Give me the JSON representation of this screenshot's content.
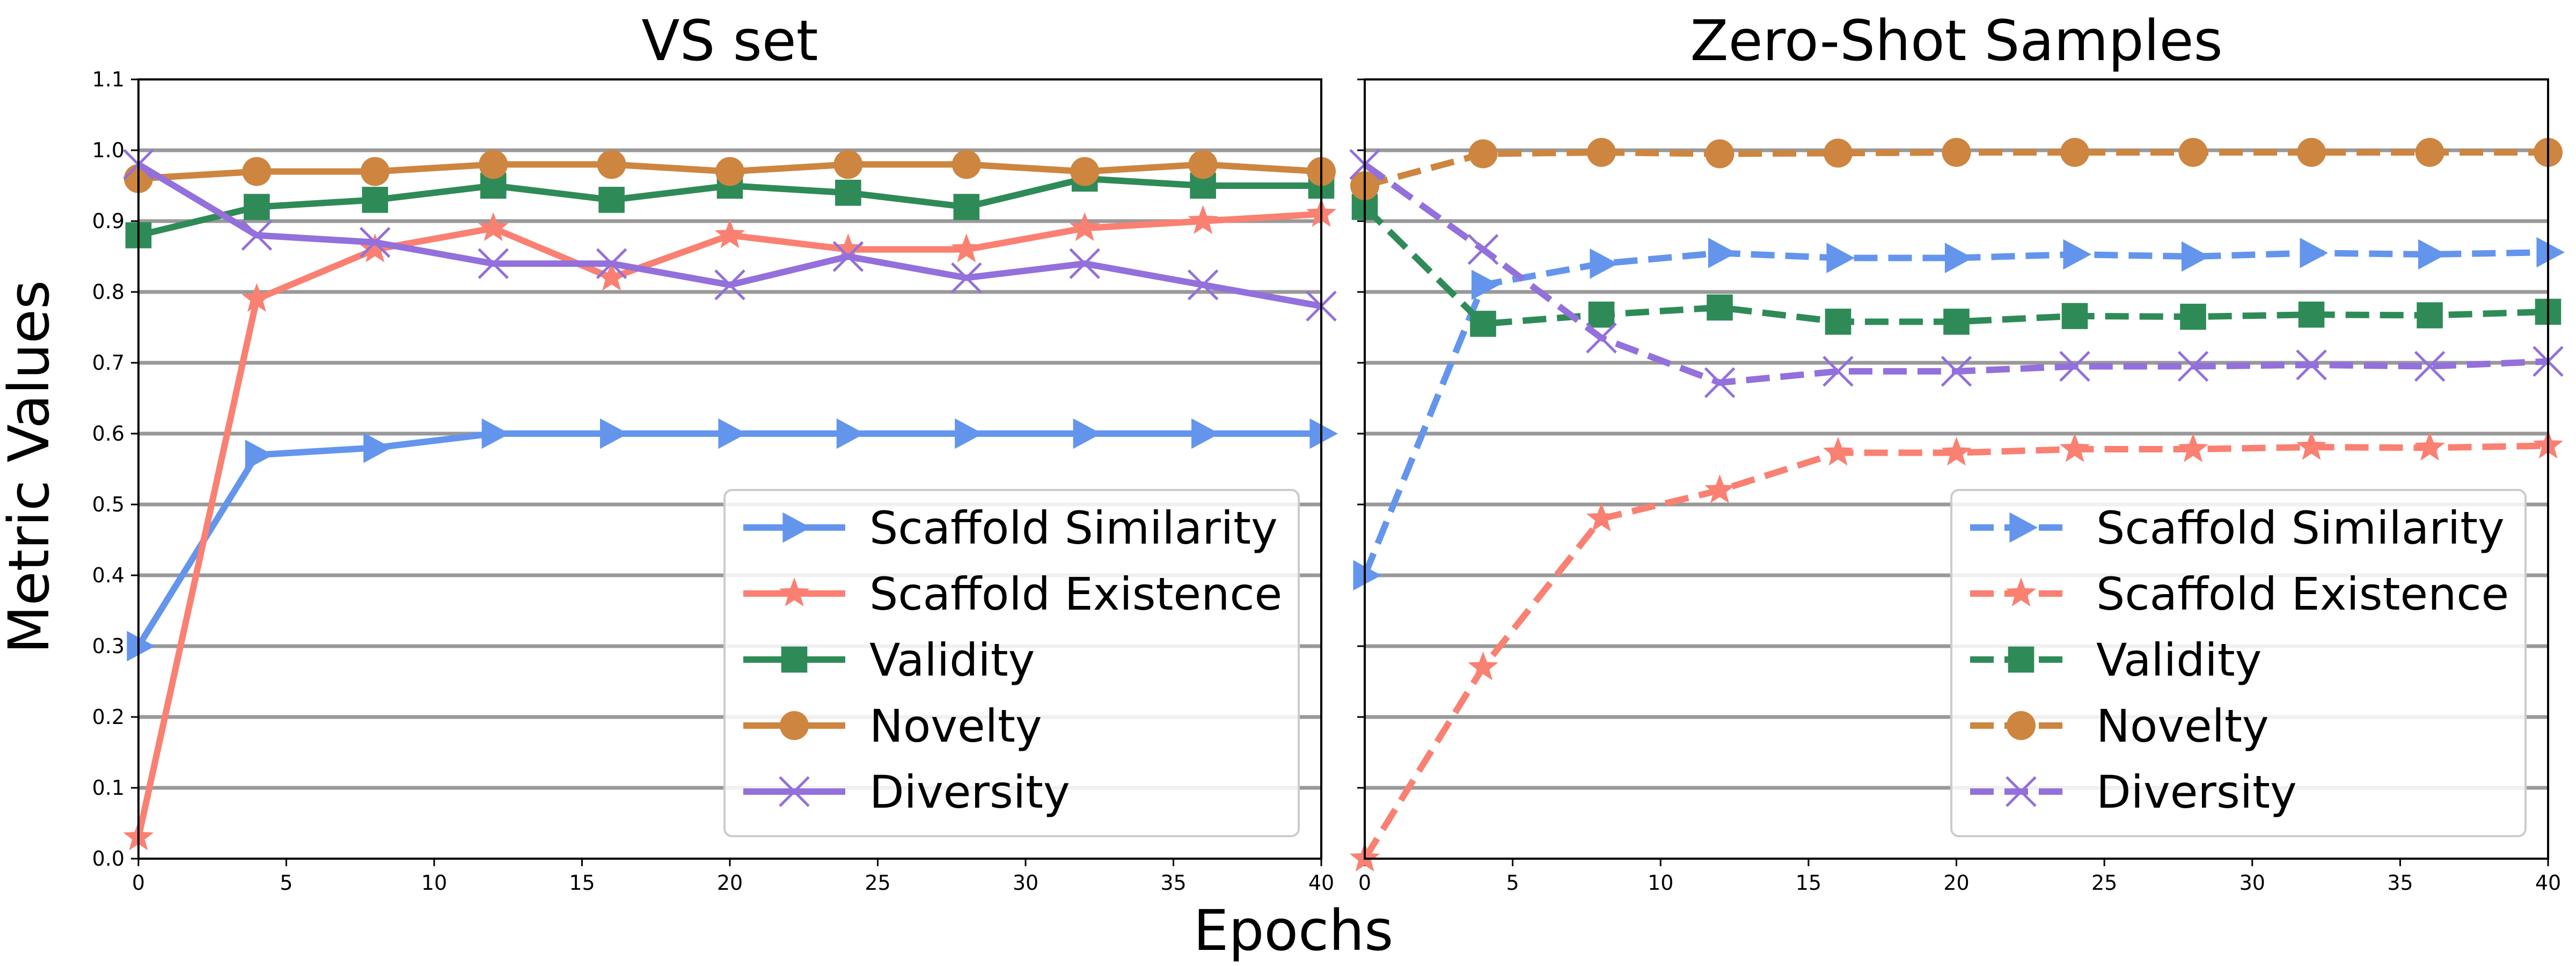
{
  "figure": {
    "ylabel": "Metric Values",
    "xlabel": "Epochs"
  },
  "chart_data": [
    {
      "type": "line",
      "title": "VS set",
      "xlabel": "Epochs",
      "ylabel": "Metric Values",
      "xlim": [
        0,
        40
      ],
      "ylim": [
        0,
        1.1
      ],
      "x_ticks": [
        0,
        5,
        10,
        15,
        20,
        25,
        30,
        35,
        40
      ],
      "y_ticks": [
        "0.0",
        "0.1",
        "0.2",
        "0.3",
        "0.4",
        "0.5",
        "0.6",
        "0.7",
        "0.8",
        "0.9",
        "1.0",
        "1.1"
      ],
      "legend_position": "lower-right",
      "line_style": "solid",
      "x": [
        0,
        4,
        8,
        12,
        16,
        20,
        24,
        28,
        32,
        36,
        40
      ],
      "series": [
        {
          "name": "Scaffold Similarity",
          "color": "#6495ED",
          "marker": "triangle-right",
          "values": [
            0.3,
            0.57,
            0.58,
            0.6,
            0.6,
            0.6,
            0.6,
            0.6,
            0.6,
            0.6,
            0.6
          ]
        },
        {
          "name": "Scaffold Existence",
          "color": "#FA8072",
          "marker": "star",
          "values": [
            0.03,
            0.79,
            0.86,
            0.89,
            0.82,
            0.88,
            0.86,
            0.86,
            0.89,
            0.9,
            0.91
          ]
        },
        {
          "name": "Validity",
          "color": "#2E8B57",
          "marker": "square",
          "values": [
            0.88,
            0.92,
            0.93,
            0.95,
            0.93,
            0.95,
            0.94,
            0.92,
            0.96,
            0.95,
            0.95
          ]
        },
        {
          "name": "Novelty",
          "color": "#CD853F",
          "marker": "circle",
          "values": [
            0.96,
            0.97,
            0.97,
            0.98,
            0.98,
            0.97,
            0.98,
            0.98,
            0.97,
            0.98,
            0.97
          ]
        },
        {
          "name": "Diversity",
          "color": "#9370DB",
          "marker": "x",
          "values": [
            0.98,
            0.88,
            0.87,
            0.84,
            0.84,
            0.81,
            0.85,
            0.82,
            0.84,
            0.81,
            0.78
          ]
        }
      ]
    },
    {
      "type": "line",
      "title": "Zero-Shot Samples",
      "xlabel": "Epochs",
      "xlim": [
        0,
        40
      ],
      "ylim": [
        0,
        1.1
      ],
      "x_ticks": [
        0,
        5,
        10,
        15,
        20,
        25,
        30,
        35,
        40
      ],
      "legend_position": "lower-right",
      "line_style": "dashed",
      "x": [
        0,
        4,
        8,
        12,
        16,
        20,
        24,
        28,
        32,
        36,
        40
      ],
      "series": [
        {
          "name": "Scaffold Similarity",
          "color": "#6495ED",
          "marker": "triangle-right",
          "values": [
            0.4,
            0.81,
            0.84,
            0.855,
            0.848,
            0.848,
            0.853,
            0.85,
            0.855,
            0.853,
            0.856
          ]
        },
        {
          "name": "Scaffold Existence",
          "color": "#FA8072",
          "marker": "star",
          "values": [
            0.0,
            0.27,
            0.48,
            0.52,
            0.573,
            0.573,
            0.578,
            0.578,
            0.581,
            0.58,
            0.583
          ]
        },
        {
          "name": "Validity",
          "color": "#2E8B57",
          "marker": "square",
          "values": [
            0.92,
            0.755,
            0.768,
            0.778,
            0.758,
            0.758,
            0.766,
            0.765,
            0.768,
            0.767,
            0.772
          ]
        },
        {
          "name": "Novelty",
          "color": "#CD853F",
          "marker": "circle",
          "values": [
            0.95,
            0.995,
            0.997,
            0.995,
            0.996,
            0.997,
            0.997,
            0.997,
            0.997,
            0.997,
            0.997
          ]
        },
        {
          "name": "Diversity",
          "color": "#9370DB",
          "marker": "x",
          "values": [
            0.98,
            0.86,
            0.735,
            0.672,
            0.688,
            0.688,
            0.695,
            0.695,
            0.697,
            0.695,
            0.702
          ]
        }
      ]
    }
  ]
}
